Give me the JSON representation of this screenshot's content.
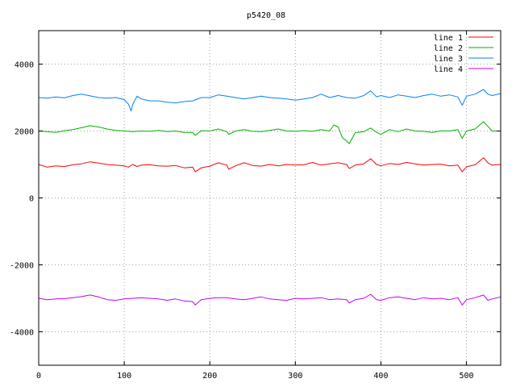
{
  "chart_data": {
    "type": "line",
    "title": "p5420_08",
    "xlabel": "",
    "ylabel": "",
    "xlim": [
      0,
      540
    ],
    "ylim": [
      -5000,
      5000
    ],
    "x_ticks": [
      0,
      100,
      200,
      300,
      400,
      500
    ],
    "y_ticks": [
      -4000,
      -2000,
      0,
      2000,
      4000
    ],
    "grid": true,
    "legend_position": "top-right",
    "series": [
      {
        "name": "line 1",
        "color": "#ff0000",
        "x": [
          0,
          10,
          20,
          30,
          40,
          50,
          60,
          70,
          80,
          90,
          100,
          105,
          110,
          115,
          120,
          130,
          140,
          150,
          160,
          170,
          180,
          183,
          190,
          200,
          210,
          220,
          222,
          230,
          240,
          250,
          260,
          270,
          280,
          290,
          300,
          310,
          320,
          330,
          340,
          350,
          360,
          363,
          370,
          380,
          388,
          395,
          400,
          410,
          420,
          430,
          440,
          450,
          460,
          470,
          480,
          490,
          495,
          500,
          510,
          520,
          525,
          530,
          540
        ],
        "y": [
          1000,
          920,
          960,
          940,
          990,
          1020,
          1080,
          1040,
          1000,
          980,
          960,
          920,
          1000,
          940,
          980,
          990,
          960,
          950,
          970,
          900,
          920,
          780,
          900,
          950,
          1050,
          980,
          860,
          960,
          1050,
          970,
          950,
          1000,
          960,
          1000,
          980,
          990,
          1060,
          980,
          1020,
          1050,
          1000,
          880,
          980,
          1020,
          1170,
          1000,
          960,
          1030,
          1000,
          1060,
          1020,
          980,
          1000,
          1010,
          960,
          980,
          780,
          930,
          990,
          1200,
          1050,
          980,
          1000
        ]
      },
      {
        "name": "line 2",
        "color": "#00b000",
        "x": [
          0,
          10,
          20,
          30,
          40,
          50,
          60,
          70,
          80,
          90,
          100,
          110,
          120,
          130,
          140,
          150,
          160,
          170,
          180,
          183,
          190,
          200,
          210,
          220,
          222,
          230,
          240,
          250,
          260,
          270,
          280,
          290,
          300,
          310,
          320,
          330,
          340,
          345,
          350,
          355,
          360,
          363,
          370,
          380,
          388,
          395,
          400,
          410,
          420,
          430,
          440,
          450,
          460,
          470,
          480,
          490,
          495,
          500,
          510,
          520,
          525,
          530,
          540
        ],
        "y": [
          2000,
          1980,
          1960,
          2010,
          2040,
          2100,
          2160,
          2120,
          2060,
          2020,
          2000,
          1980,
          2000,
          1990,
          2020,
          1980,
          2000,
          1960,
          1960,
          1870,
          2010,
          2000,
          2060,
          1980,
          1900,
          2000,
          2040,
          1990,
          1980,
          2020,
          2060,
          2000,
          1990,
          2010,
          1990,
          2040,
          2000,
          2180,
          2120,
          1800,
          1700,
          1620,
          1950,
          1980,
          2090,
          1960,
          1900,
          2040,
          1980,
          2060,
          2000,
          1990,
          1960,
          2010,
          2000,
          2040,
          1780,
          2000,
          2060,
          2280,
          2140,
          2000,
          2000
        ]
      },
      {
        "name": "line 3",
        "color": "#0080ff",
        "x": [
          0,
          10,
          20,
          30,
          40,
          50,
          60,
          70,
          80,
          90,
          100,
          105,
          108,
          110,
          115,
          120,
          130,
          140,
          150,
          160,
          170,
          180,
          190,
          200,
          210,
          220,
          230,
          240,
          250,
          260,
          270,
          280,
          290,
          300,
          310,
          320,
          330,
          340,
          350,
          360,
          370,
          380,
          388,
          395,
          400,
          410,
          420,
          430,
          440,
          450,
          460,
          470,
          480,
          490,
          495,
          500,
          510,
          520,
          525,
          530,
          540
        ],
        "y": [
          3000,
          2980,
          3020,
          2990,
          3060,
          3100,
          3050,
          3000,
          2980,
          3000,
          2940,
          2800,
          2600,
          2800,
          3040,
          2960,
          2900,
          2900,
          2860,
          2840,
          2880,
          2900,
          3000,
          3000,
          3080,
          3040,
          3000,
          2960,
          3000,
          3040,
          3000,
          2980,
          2960,
          2920,
          2960,
          3000,
          3100,
          3000,
          3060,
          3000,
          2980,
          3060,
          3200,
          3020,
          3060,
          3000,
          3080,
          3040,
          3000,
          3060,
          3100,
          3040,
          3080,
          3020,
          2770,
          3040,
          3100,
          3240,
          3100,
          3060,
          3120
        ]
      },
      {
        "name": "line 4",
        "color": "#c000ff",
        "x": [
          0,
          10,
          20,
          30,
          40,
          50,
          60,
          70,
          80,
          90,
          100,
          110,
          120,
          130,
          140,
          150,
          160,
          170,
          180,
          183,
          190,
          200,
          210,
          220,
          230,
          240,
          250,
          260,
          270,
          280,
          290,
          300,
          310,
          320,
          330,
          340,
          350,
          360,
          363,
          370,
          380,
          388,
          395,
          400,
          410,
          420,
          430,
          440,
          450,
          460,
          470,
          480,
          490,
          495,
          500,
          510,
          520,
          525,
          530,
          540
        ],
        "y": [
          -3000,
          -3040,
          -3020,
          -3010,
          -2980,
          -2950,
          -2900,
          -2960,
          -3040,
          -3060,
          -3020,
          -3000,
          -2980,
          -3000,
          -3020,
          -3060,
          -3020,
          -3080,
          -3100,
          -3200,
          -3040,
          -3000,
          -2980,
          -2980,
          -3020,
          -3040,
          -3000,
          -2960,
          -3020,
          -3040,
          -3060,
          -3000,
          -3020,
          -3000,
          -2980,
          -3040,
          -3020,
          -3040,
          -3140,
          -3040,
          -3000,
          -2880,
          -3040,
          -3060,
          -2980,
          -2960,
          -3000,
          -3040,
          -2980,
          -3020,
          -3000,
          -3040,
          -2980,
          -3200,
          -3040,
          -2980,
          -2900,
          -3060,
          -3020,
          -2960
        ]
      }
    ]
  }
}
